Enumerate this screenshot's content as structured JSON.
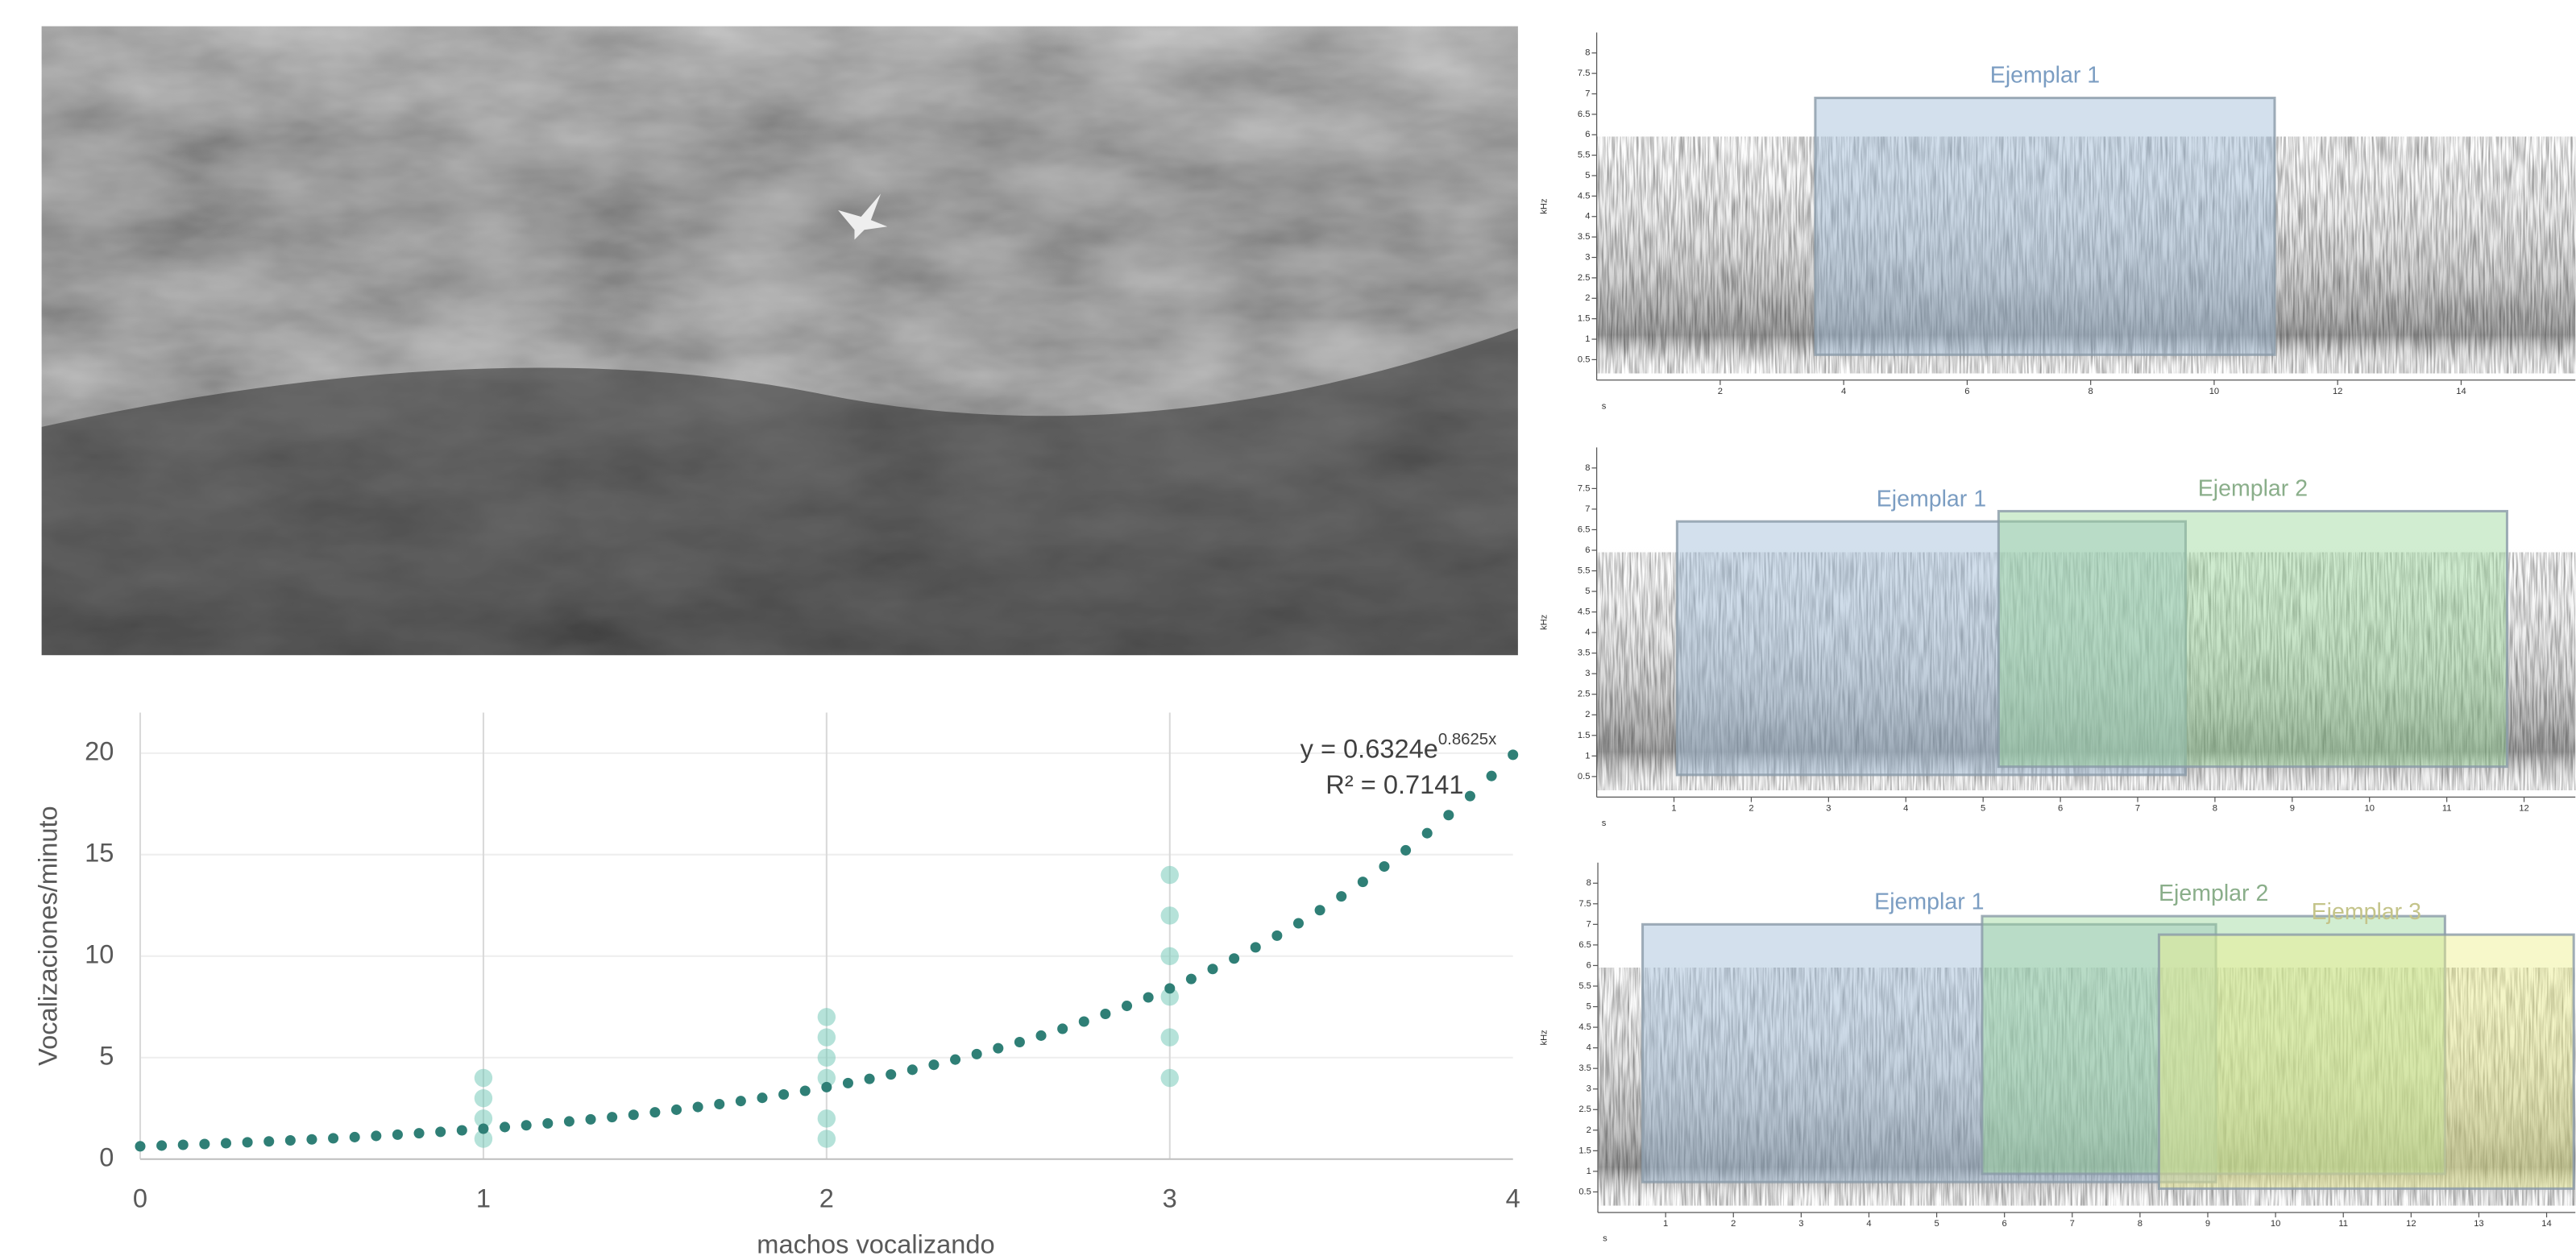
{
  "chart_data": [
    {
      "type": "scatter",
      "x": [
        1,
        1,
        1,
        1,
        2,
        2,
        2,
        2,
        2,
        2,
        3,
        3,
        3,
        3,
        3,
        3
      ],
      "values": [
        4,
        3,
        2,
        1,
        7,
        6,
        5,
        4,
        2,
        1,
        14,
        12,
        10,
        8,
        6,
        4
      ],
      "color": "#6cc5b3",
      "trendline": {
        "a": 0.6324,
        "b": 0.8625,
        "color": "#2f7f76",
        "label": "y = 0.6324e",
        "exponent_label": "0.8625x",
        "r2_label": "R² = 0.7141"
      },
      "xlabel": "machos vocalizando",
      "ylabel": "Vocalizaciones/minuto",
      "xlim": [
        0,
        4
      ],
      "ylim": [
        0,
        22
      ],
      "xticks": [
        0,
        1,
        2,
        3,
        4
      ],
      "yticks": [
        0,
        5,
        10,
        15,
        20
      ],
      "grid": true
    },
    {
      "type": "spectrogram",
      "xlabel": "s",
      "ylabel": "kHz",
      "xlim": [
        0,
        15.85
      ],
      "ylim": [
        0,
        8.5
      ],
      "xticks": [
        2,
        4,
        6,
        8,
        10,
        12,
        14
      ],
      "yticks": [
        0.5,
        1,
        1.5,
        2,
        2.5,
        3,
        3.5,
        4,
        4.5,
        5,
        5.5,
        6,
        6.5,
        7,
        7.5,
        8
      ],
      "regions": [
        {
          "label": "Ejemplar 1",
          "color": "#9dbbd8",
          "label_color": "#7b9dc2",
          "x": [
            3.54,
            10.98
          ],
          "y": [
            0.62,
            6.9
          ]
        }
      ]
    },
    {
      "type": "spectrogram",
      "xlabel": "s",
      "ylabel": "kHz",
      "xlim": [
        0,
        12.6
      ],
      "ylim": [
        0,
        8.5
      ],
      "xticks": [
        1,
        2,
        3,
        4,
        5,
        6,
        7,
        8,
        9,
        10,
        11,
        12
      ],
      "yticks": [
        0.5,
        1,
        1.5,
        2,
        2.5,
        3,
        3.5,
        4,
        4.5,
        5,
        5.5,
        6,
        6.5,
        7,
        7.5,
        8
      ],
      "regions": [
        {
          "label": "Ejemplar 1",
          "color": "#9dbbd8",
          "label_color": "#7b9dc2",
          "x": [
            1.04,
            7.62
          ],
          "y": [
            0.54,
            6.7
          ]
        },
        {
          "label": "Ejemplar 2",
          "color": "#98d898",
          "label_color": "#8aae8a",
          "x": [
            5.2,
            11.78
          ],
          "y": [
            0.74,
            6.95
          ]
        }
      ]
    },
    {
      "type": "spectrogram",
      "xlabel": "s",
      "ylabel": "kHz",
      "xlim": [
        0,
        14.4
      ],
      "ylim": [
        0,
        8.5
      ],
      "xticks": [
        1,
        2,
        3,
        4,
        5,
        6,
        7,
        8,
        9,
        10,
        11,
        12,
        13,
        14
      ],
      "yticks": [
        0.5,
        1,
        1.5,
        2,
        2.5,
        3,
        3.5,
        4,
        4.5,
        5,
        5.5,
        6,
        6.5,
        7,
        7.5,
        8
      ],
      "regions": [
        {
          "label": "Ejemplar 1",
          "color": "#9dbbd8",
          "label_color": "#7b9dc2",
          "x": [
            0.66,
            9.12
          ],
          "y": [
            0.74,
            7.0
          ]
        },
        {
          "label": "Ejemplar 2",
          "color": "#98d898",
          "label_color": "#8aae8a",
          "x": [
            5.67,
            12.5
          ],
          "y": [
            0.94,
            7.2
          ]
        },
        {
          "label": "Ejemplar 3",
          "color": "#eef08a",
          "label_color": "#c4c48a",
          "x": [
            8.28,
            14.4
          ],
          "y": [
            0.58,
            6.75
          ]
        }
      ]
    }
  ]
}
